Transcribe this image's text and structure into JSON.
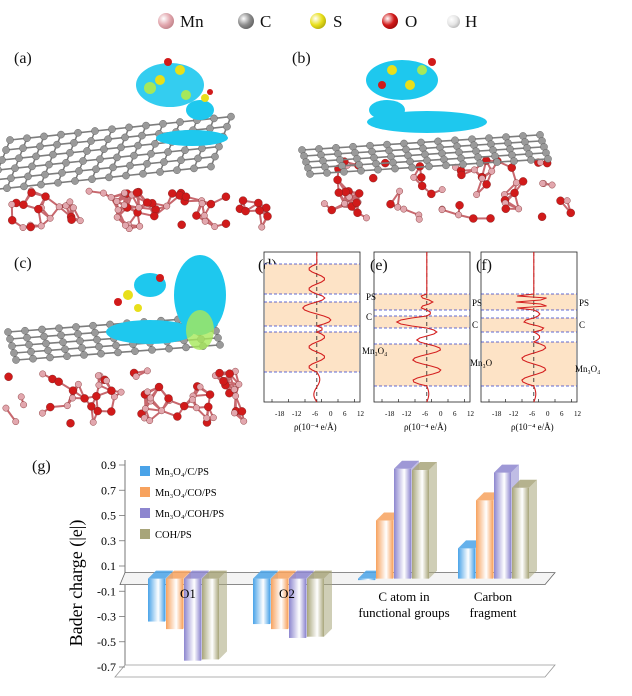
{
  "atom_legend": [
    {
      "symbol": "Mn",
      "color": "#e2a7ae"
    },
    {
      "symbol": "C",
      "color": "#8d8d8d"
    },
    {
      "symbol": "S",
      "color": "#e8df1a"
    },
    {
      "symbol": "O",
      "color": "#d11a1a"
    },
    {
      "symbol": "H",
      "color": "#e6e6e6"
    }
  ],
  "panel_labels": {
    "a": "(a)",
    "b": "(b)",
    "c": "(c)",
    "d": "(d)",
    "e": "(e)",
    "f": "(f)",
    "g": "(g)"
  },
  "colors": {
    "cloud": "#1ec8ee",
    "cloud_green": "#a6e85a",
    "band": "#fde3c6",
    "curve": "#d41f1f",
    "dash": "#2f3cc7"
  },
  "density_plots": {
    "xaxis_label": "ρ(10⁻⁴ e/Å)",
    "ticks": [
      "-18",
      "-12",
      "-6",
      "0",
      "6",
      "12"
    ],
    "d": {
      "labels": [
        "PS",
        "C",
        "Mn₃O₄"
      ]
    },
    "e": {
      "labels": [
        "PS",
        "C",
        "Mn₃O"
      ]
    },
    "f": {
      "labels": [
        "PS",
        "C",
        "Mn₃O₄"
      ]
    }
  },
  "chart_data": {
    "type": "bar",
    "title": "",
    "ylabel": "Bader charge (|e|)",
    "ylim": [
      -0.7,
      0.9
    ],
    "yticks": [
      "0.9",
      "0.7",
      "0.5",
      "0.3",
      "0.1",
      "-0.1",
      "-0.3",
      "-0.5",
      "-0.7"
    ],
    "categories": [
      "O1",
      "O2",
      "C atom in functional groups",
      "Carbon fragment"
    ],
    "category_labels": [
      [
        "O1"
      ],
      [
        "O2"
      ],
      [
        "C atom in",
        "functional groups"
      ],
      [
        "Carbon",
        "fragment"
      ]
    ],
    "series": [
      {
        "name": "Mn₃O₄/C/PS",
        "color": "#4aa3e8",
        "values": [
          -0.34,
          -0.36,
          -0.01,
          0.24
        ]
      },
      {
        "name": "Mn₃O₄/CO/PS",
        "color": "#f7a25e",
        "values": [
          -0.4,
          -0.4,
          0.46,
          0.62
        ]
      },
      {
        "name": "Mn₃O₄/COH/PS",
        "color": "#8d86cf",
        "values": [
          -0.65,
          -0.47,
          0.87,
          0.84
        ]
      },
      {
        "name": "COH/PS",
        "color": "#a8a57a",
        "values": [
          -0.64,
          -0.46,
          0.86,
          0.72
        ]
      }
    ]
  }
}
